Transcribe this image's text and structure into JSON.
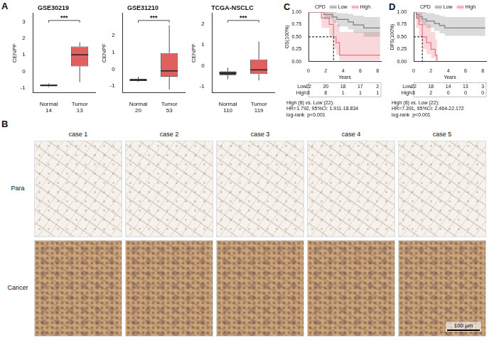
{
  "chart_data": [
    {
      "type": "box",
      "panel": "A",
      "title": "GSE30219",
      "y_label": "CENPF",
      "categories": [
        "Normal",
        "Tumor"
      ],
      "n": [
        14,
        13
      ],
      "colors": [
        "#3a3a3a",
        "#e0605f"
      ],
      "boxes": [
        {
          "min": -0.95,
          "q1": -0.9,
          "median": -0.85,
          "q3": -0.78,
          "max": -0.72
        },
        {
          "min": -0.65,
          "q1": 0.3,
          "median": 1.0,
          "q3": 1.5,
          "max": 1.75
        }
      ],
      "significance": "***",
      "ylim": [
        -1.3,
        3.5
      ],
      "yticks": [
        -1,
        0,
        1,
        2,
        3
      ],
      "grid": false
    },
    {
      "type": "box",
      "title": "GSE31210",
      "y_label": "CENPF",
      "categories": [
        "Normal",
        "Tumor"
      ],
      "n": [
        20,
        53
      ],
      "colors": [
        "#3a3a3a",
        "#e0605f"
      ],
      "boxes": [
        {
          "min": -0.75,
          "q1": -0.7,
          "median": -0.65,
          "q3": -0.57,
          "max": -0.45
        },
        {
          "min": -1.2,
          "q1": -0.45,
          "median": -0.1,
          "q3": 0.95,
          "max": 2.6
        }
      ],
      "significance": "***",
      "ylim": [
        -1.4,
        3.3
      ],
      "yticks": [
        -1,
        0,
        1,
        2
      ],
      "grid": false
    },
    {
      "type": "box",
      "title": "TCGA-NSCLC",
      "y_label": "CENPF",
      "categories": [
        "Normal",
        "Tumor"
      ],
      "n": [
        110,
        119
      ],
      "colors": [
        "#3a3a3a",
        "#e0605f"
      ],
      "boxes": [
        {
          "min": -0.65,
          "q1": -0.45,
          "median": -0.35,
          "q3": -0.27,
          "max": -0.1
        },
        {
          "min": -0.7,
          "q1": -0.4,
          "median": -0.2,
          "q3": 0.3,
          "max": 1.15
        }
      ],
      "significance": "***",
      "ylim": [
        -1.3,
        2.5
      ],
      "yticks": [
        -1,
        0,
        1,
        2
      ],
      "grid": false
    },
    {
      "type": "survival",
      "panel": "C",
      "title": "CPD",
      "legend": "top",
      "grid": false,
      "y_label": "OS(100%)",
      "x_label": "Years",
      "xlim": [
        0,
        8.4
      ],
      "xticks": [
        0,
        2,
        4,
        6,
        8
      ],
      "ylim": [
        0,
        1
      ],
      "yticks": [
        {
          "value": 0,
          "label": "0.00"
        },
        {
          "value": 0.25,
          "label": "0.25"
        },
        {
          "value": 0.5,
          "label": "0.50"
        },
        {
          "value": 0.75,
          "label": "0.75"
        },
        {
          "value": 1,
          "label": "1.00"
        }
      ],
      "series": [
        {
          "name": "Low",
          "color": "#7f7f7f",
          "x": [
            0,
            1.8,
            2.8,
            3.3,
            4.6,
            5.2,
            6.4,
            8.3
          ],
          "values": [
            1,
            0.95,
            0.9,
            0.85,
            0.8,
            0.74,
            0.68,
            0.68
          ],
          "ci_upper": [
            1,
            1,
            1,
            0.98,
            0.96,
            0.93,
            0.9,
            0.9
          ],
          "ci_lower": [
            1,
            0.86,
            0.78,
            0.71,
            0.65,
            0.58,
            0.5,
            0.5
          ]
        },
        {
          "name": "High",
          "color": "#e8747c",
          "x": [
            0,
            1.5,
            2.4,
            2.9,
            3.2,
            3.6,
            8.3
          ],
          "values": [
            1,
            0.88,
            0.75,
            0.5,
            0.38,
            0.13,
            0.13
          ],
          "ci_upper": [
            1,
            1,
            1,
            0.85,
            0.75,
            0.6,
            0.6
          ],
          "ci_lower": [
            1,
            0.68,
            0.5,
            0.25,
            0.14,
            0.02,
            0.02
          ]
        }
      ],
      "median_lines": [
        {
          "x": 2.9,
          "y": 0.5
        }
      ],
      "risk_table": {
        "x": [
          0,
          2,
          4,
          6,
          8
        ],
        "rows": [
          {
            "name": "Low",
            "values": [
              22,
              20,
              18,
              17,
              2
            ]
          },
          {
            "name": "High",
            "values": [
              8,
              8,
              1,
              1,
              1
            ]
          }
        ]
      },
      "annotations": [
        "High (8) vs. Low (22):",
        "HR=1.792, 95%CI: 1.911-18.834",
        "log-rank  p<0.001"
      ]
    },
    {
      "type": "survival",
      "panel": "D",
      "title": "CPD",
      "legend": "top",
      "grid": false,
      "y_label": "DFS(100%)",
      "x_label": "Years",
      "xlim": [
        0,
        8.4
      ],
      "xticks": [
        0,
        2,
        4,
        6,
        8
      ],
      "ylim": [
        0,
        1
      ],
      "yticks": [
        {
          "value": 0,
          "label": "0.00"
        },
        {
          "value": 0.25,
          "label": "0.25"
        },
        {
          "value": 0.5,
          "label": "0.50"
        },
        {
          "value": 0.75,
          "label": "0.75"
        },
        {
          "value": 1,
          "label": "1.00"
        }
      ],
      "series": [
        {
          "name": "Low",
          "color": "#7f7f7f",
          "x": [
            0,
            0.3,
            0.6,
            1,
            1.5,
            2.4,
            3,
            3.6,
            8.3
          ],
          "values": [
            1,
            0.95,
            0.91,
            0.86,
            0.82,
            0.77,
            0.73,
            0.68,
            0.68
          ],
          "ci_upper": [
            1,
            1,
            1,
            1,
            0.98,
            0.95,
            0.92,
            0.9,
            0.9
          ],
          "ci_lower": [
            1,
            0.86,
            0.8,
            0.73,
            0.68,
            0.62,
            0.57,
            0.52,
            0.52
          ]
        },
        {
          "name": "High",
          "color": "#e8747c",
          "x": [
            0,
            0.3,
            0.6,
            1,
            1.5,
            2,
            2.5,
            2.7
          ],
          "values": [
            1,
            0.88,
            0.75,
            0.5,
            0.38,
            0.25,
            0.13,
            0
          ],
          "ci_upper": [
            1,
            1,
            1,
            0.85,
            0.75,
            0.6,
            0.45,
            0.45
          ],
          "ci_lower": [
            1,
            0.68,
            0.5,
            0.25,
            0.15,
            0.07,
            0.02,
            0
          ]
        }
      ],
      "median_lines": [
        {
          "x": 1.0,
          "y": 0.5
        }
      ],
      "risk_table": {
        "x": [
          0,
          2,
          4,
          6,
          8
        ],
        "rows": [
          {
            "name": "Low",
            "values": [
              22,
              18,
              14,
              13,
              3
            ]
          },
          {
            "name": "High",
            "values": [
              8,
              2,
              0,
              0,
              0
            ]
          }
        ]
      },
      "annotations": [
        "High (8) vs. Low (22):",
        "HR=7.391, 95%CI: 2.464-22.172",
        "log-rank  p<0.001"
      ]
    }
  ],
  "images": {
    "panel": "B",
    "rows": [
      "Para",
      "Cancer"
    ],
    "columns": [
      "case 1",
      "case 2",
      "case 3",
      "case 4",
      "case 5"
    ],
    "scale_bar": "100 μm"
  }
}
